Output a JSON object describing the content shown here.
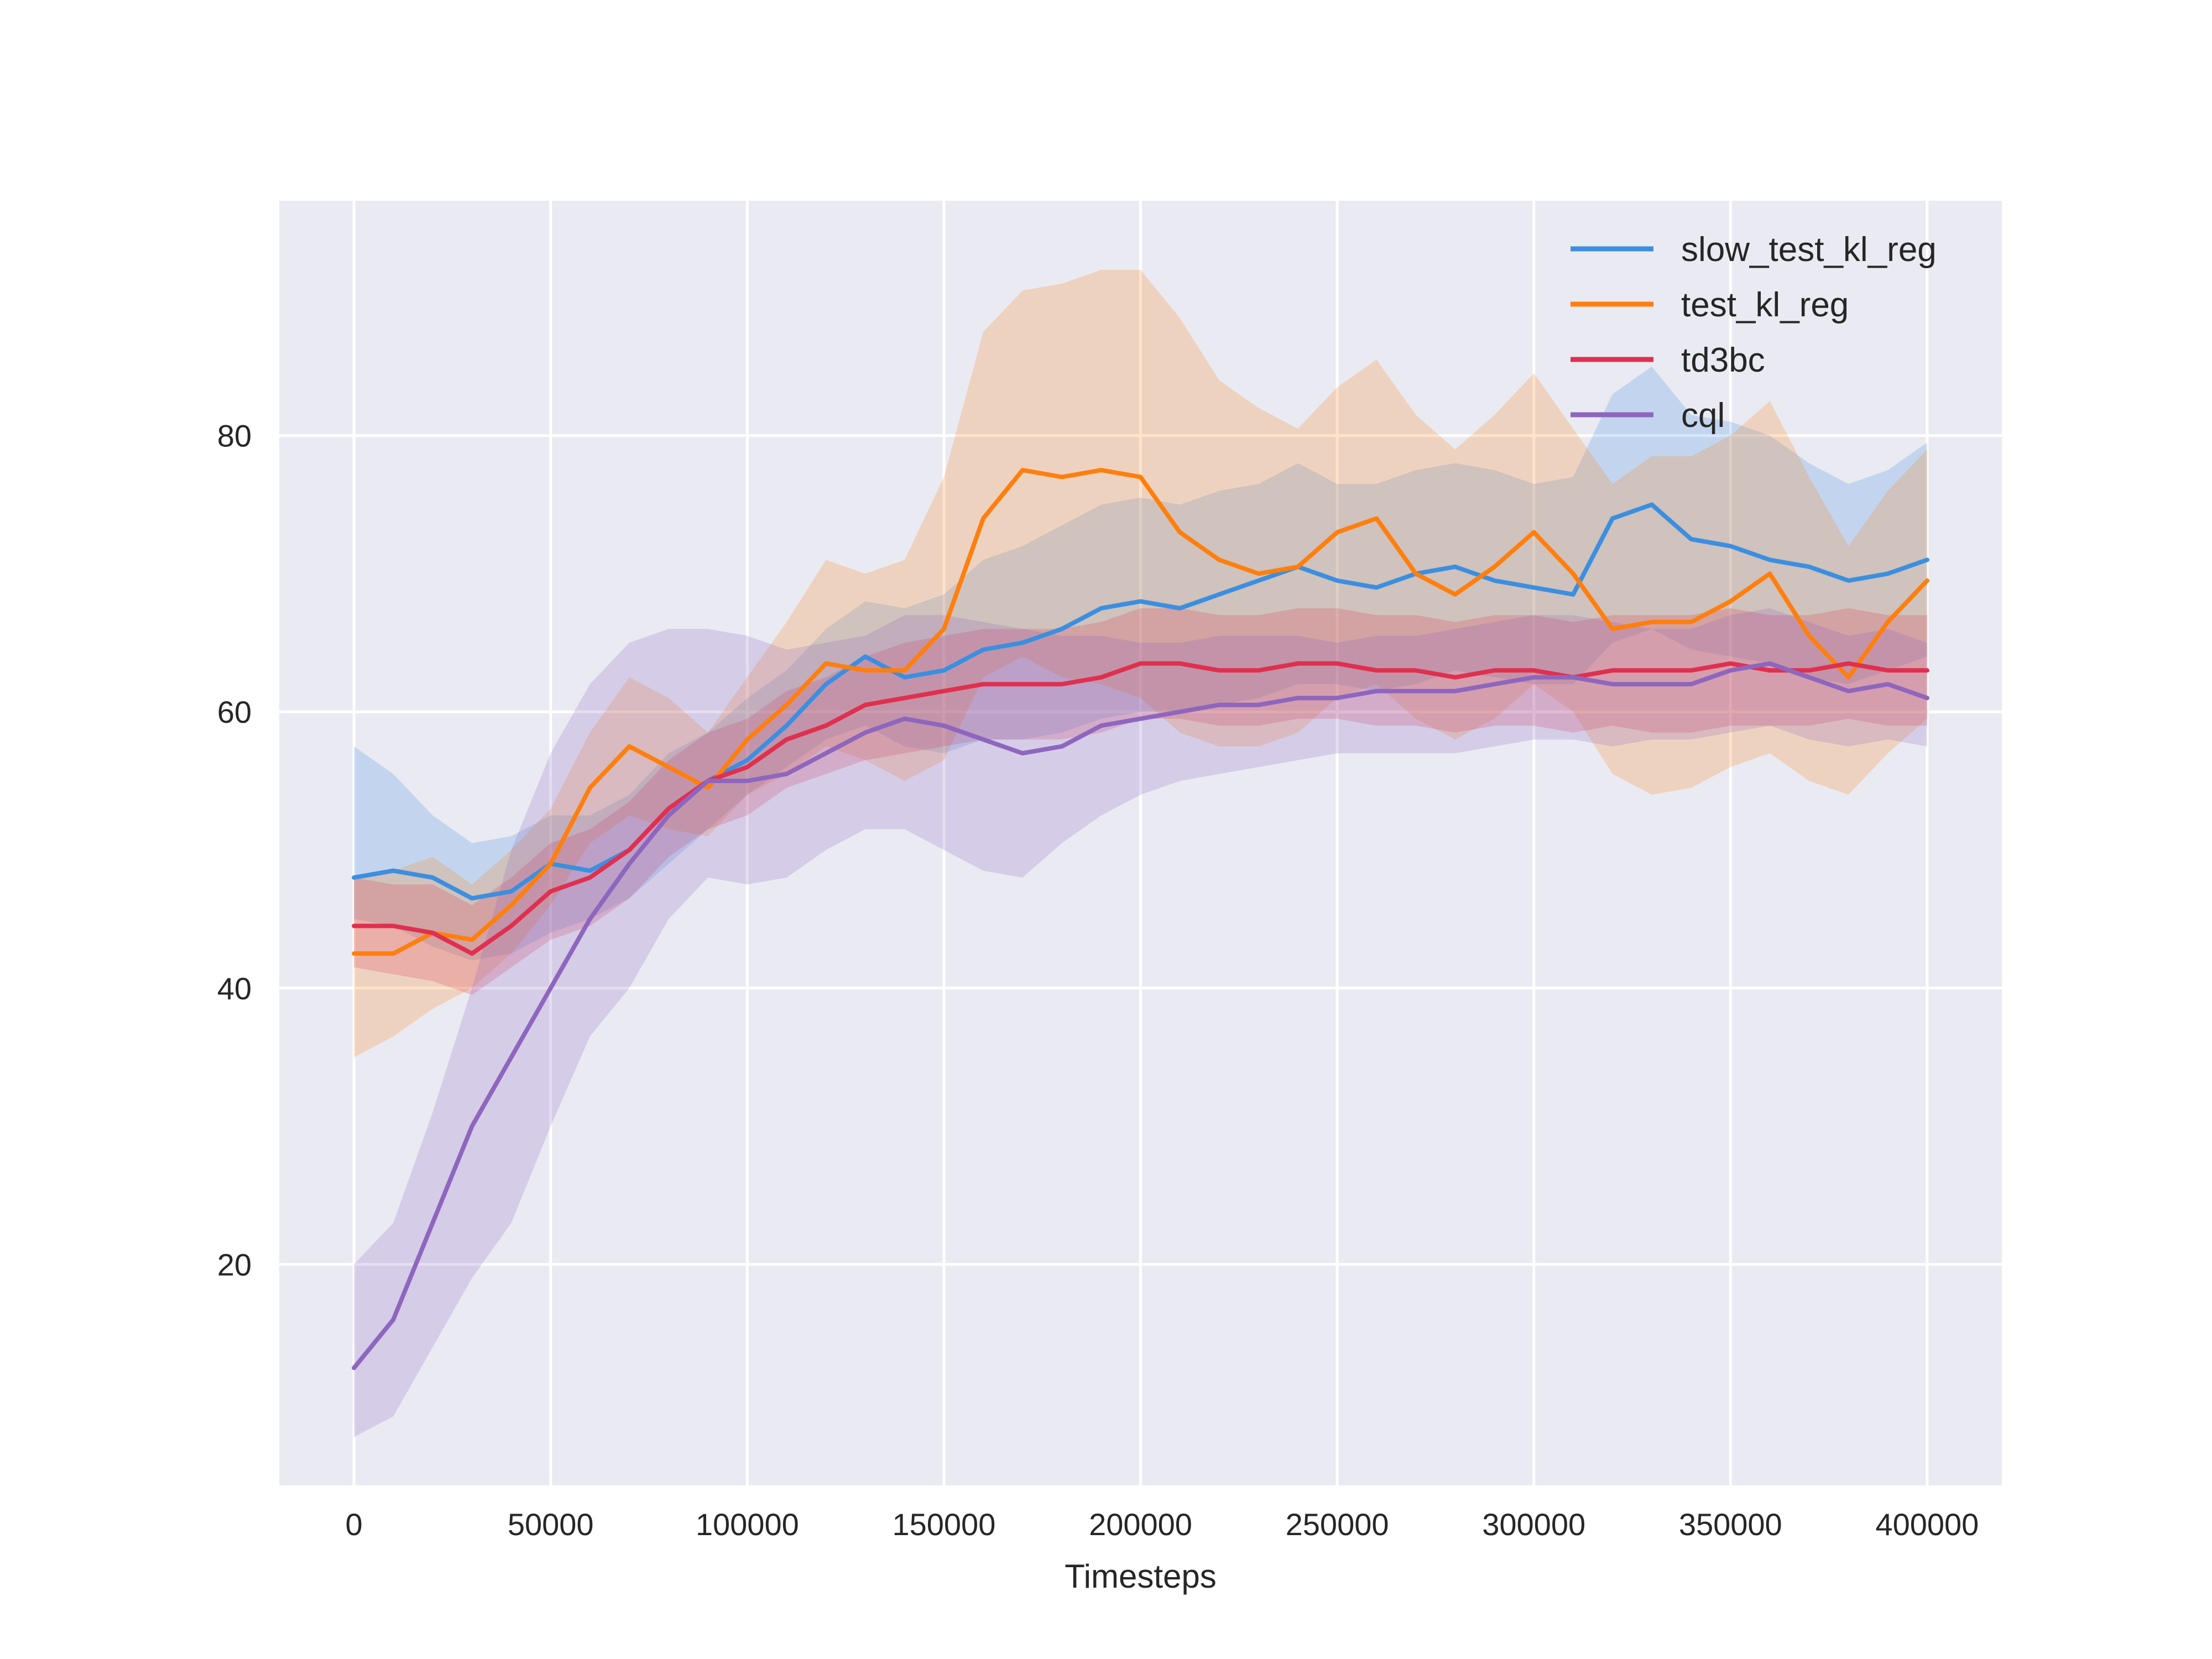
{
  "chart_data": {
    "type": "line",
    "title": "",
    "xlabel": "Timesteps",
    "ylabel": "",
    "xlim": [
      -19000,
      419000
    ],
    "ylim": [
      4,
      97
    ],
    "xticks": [
      0,
      50000,
      100000,
      150000,
      200000,
      250000,
      300000,
      350000,
      400000
    ],
    "xtick_labels": [
      "0",
      "50000",
      "100000",
      "150000",
      "200000",
      "250000",
      "300000",
      "350000",
      "400000"
    ],
    "yticks": [
      20,
      40,
      60,
      80
    ],
    "ytick_labels": [
      "20",
      "40",
      "60",
      "80"
    ],
    "grid": true,
    "legend_position": "top-right",
    "x": [
      0,
      10000,
      20000,
      30000,
      40000,
      50000,
      60000,
      70000,
      80000,
      90000,
      100000,
      110000,
      120000,
      130000,
      140000,
      150000,
      160000,
      170000,
      180000,
      190000,
      200000,
      210000,
      220000,
      230000,
      240000,
      250000,
      260000,
      270000,
      280000,
      290000,
      300000,
      310000,
      320000,
      330000,
      340000,
      350000,
      360000,
      370000,
      380000,
      390000,
      400000
    ],
    "series": [
      {
        "name": "slow_test_kl_reg",
        "color": "#3c8fe0",
        "values": [
          48,
          48.5,
          48,
          46.5,
          47,
          49,
          48.5,
          50,
          53,
          55,
          56.5,
          59,
          62,
          64,
          62.5,
          63,
          64.5,
          65,
          66,
          67.5,
          68,
          67.5,
          68.5,
          69.5,
          70.5,
          69.5,
          69,
          70,
          70.5,
          69.5,
          69,
          68.5,
          74,
          75,
          72.5,
          72,
          71,
          70.5,
          69.5,
          70,
          71
        ],
        "lower": [
          45,
          44.5,
          43,
          42,
          42.5,
          44,
          45,
          46.5,
          49,
          51.5,
          54,
          56,
          58,
          59,
          57.5,
          57,
          58,
          58,
          58.5,
          59.5,
          60,
          60,
          60.5,
          61,
          62,
          62,
          61.5,
          62,
          63,
          62.5,
          62,
          62,
          65,
          66,
          64.5,
          64,
          63.5,
          62.5,
          62,
          63,
          64
        ],
        "upper": [
          57.5,
          55.5,
          52.5,
          50.5,
          51,
          52.5,
          52.5,
          54,
          57,
          58.5,
          61,
          63,
          66,
          68,
          67.5,
          68.5,
          71,
          72,
          73.5,
          75,
          75.5,
          75,
          76,
          76.5,
          78,
          76.5,
          76.5,
          77.5,
          78,
          77.5,
          76.5,
          77,
          83,
          85,
          81.5,
          81,
          80,
          78,
          76.5,
          77.5,
          79.5
        ]
      },
      {
        "name": "test_kl_reg",
        "color": "#ff7f0e",
        "values": [
          42.5,
          42.5,
          44,
          43.5,
          46,
          49,
          54.5,
          57.5,
          56,
          54.5,
          58,
          60.5,
          63.5,
          63,
          63,
          66,
          74,
          77.5,
          77,
          77.5,
          77,
          73,
          71,
          70,
          70.5,
          73,
          74,
          70,
          68.5,
          70.5,
          73,
          70,
          66,
          66.5,
          66.5,
          68,
          70,
          65.5,
          62.5,
          66.5,
          69.5
        ],
        "lower": [
          35,
          36.5,
          38.5,
          40,
          42.5,
          46,
          50.5,
          52.5,
          51.5,
          51,
          54,
          55.5,
          57.5,
          56.5,
          55,
          56.5,
          62.5,
          64,
          62.5,
          62,
          61,
          58.5,
          57.5,
          57.5,
          58.5,
          61,
          62,
          59.5,
          58,
          59.5,
          62,
          60,
          55.5,
          54,
          54.5,
          56,
          57,
          55,
          54,
          57,
          59.5
        ],
        "upper": [
          48,
          48.5,
          49.5,
          47.5,
          50,
          53,
          58.5,
          62.5,
          61,
          58.5,
          62.5,
          66.5,
          71,
          70,
          71,
          77,
          87.5,
          90.5,
          91,
          92,
          92,
          88.5,
          84,
          82,
          80.5,
          83.5,
          85.5,
          81.5,
          79,
          81.5,
          84.5,
          80.5,
          76.5,
          78.5,
          78.5,
          80,
          82.5,
          77,
          72,
          76,
          79
        ]
      },
      {
        "name": "td3bc",
        "color": "#e0304f",
        "values": [
          44.5,
          44.5,
          44,
          42.5,
          44.5,
          47,
          48,
          50,
          53,
          55,
          56,
          58,
          59,
          60.5,
          61,
          61.5,
          62,
          62,
          62,
          62.5,
          63.5,
          63.5,
          63,
          63,
          63.5,
          63.5,
          63,
          63,
          62.5,
          63,
          63,
          62.5,
          63,
          63,
          63,
          63.5,
          63,
          63,
          63.5,
          63,
          63
        ],
        "lower": [
          41.5,
          41,
          40.5,
          39.5,
          41.5,
          43.5,
          44.5,
          46.5,
          49.5,
          51.5,
          52.5,
          54.5,
          55.5,
          56.5,
          57,
          57.5,
          58,
          58,
          58,
          58.5,
          59.5,
          59.5,
          59,
          59,
          59.5,
          59.5,
          59,
          59,
          58.5,
          59,
          59,
          58.5,
          59,
          58.5,
          58.5,
          59,
          59,
          59,
          59.5,
          59,
          59
        ],
        "upper": [
          48,
          47.5,
          47.5,
          46,
          48,
          50.5,
          51.5,
          53.5,
          56.5,
          58.5,
          59.5,
          61.5,
          62.5,
          64,
          65,
          65.5,
          66,
          66,
          66,
          66.5,
          67.5,
          67.5,
          67,
          67,
          67.5,
          67.5,
          67,
          67,
          66.5,
          67,
          67,
          66.5,
          67,
          67,
          67,
          67.5,
          67,
          67,
          67.5,
          67,
          67
        ]
      },
      {
        "name": "cql",
        "color": "#8e66be",
        "values": [
          12.5,
          16,
          23,
          30,
          35,
          40,
          45,
          49,
          52.5,
          55,
          55,
          55.5,
          57,
          58.5,
          59.5,
          59,
          58,
          57,
          57.5,
          59,
          59.5,
          60,
          60.5,
          60.5,
          61,
          61,
          61.5,
          61.5,
          61.5,
          62,
          62.5,
          62.5,
          62,
          62,
          62,
          63,
          63.5,
          62.5,
          61.5,
          62,
          61
        ],
        "lower": [
          7.5,
          9,
          14,
          19,
          23,
          30,
          36.5,
          40,
          45,
          48,
          47.5,
          48,
          50,
          51.5,
          51.5,
          50,
          48.5,
          48,
          50.5,
          52.5,
          54,
          55,
          55.5,
          56,
          56.5,
          57,
          57,
          57,
          57,
          57.5,
          58,
          58,
          57.5,
          58,
          58,
          58.5,
          59,
          58,
          57.5,
          58,
          57.5
        ],
        "upper": [
          20,
          23,
          31,
          40,
          50,
          57,
          62,
          65,
          66,
          66,
          65.5,
          64.5,
          65,
          65.5,
          67,
          67,
          66.5,
          66,
          65.5,
          65.5,
          65,
          65,
          65.5,
          65.5,
          65.5,
          65,
          65.5,
          65.5,
          66,
          66.5,
          67,
          67,
          66.5,
          66,
          66,
          67,
          67.5,
          66.5,
          65.5,
          66,
          65
        ]
      }
    ]
  }
}
